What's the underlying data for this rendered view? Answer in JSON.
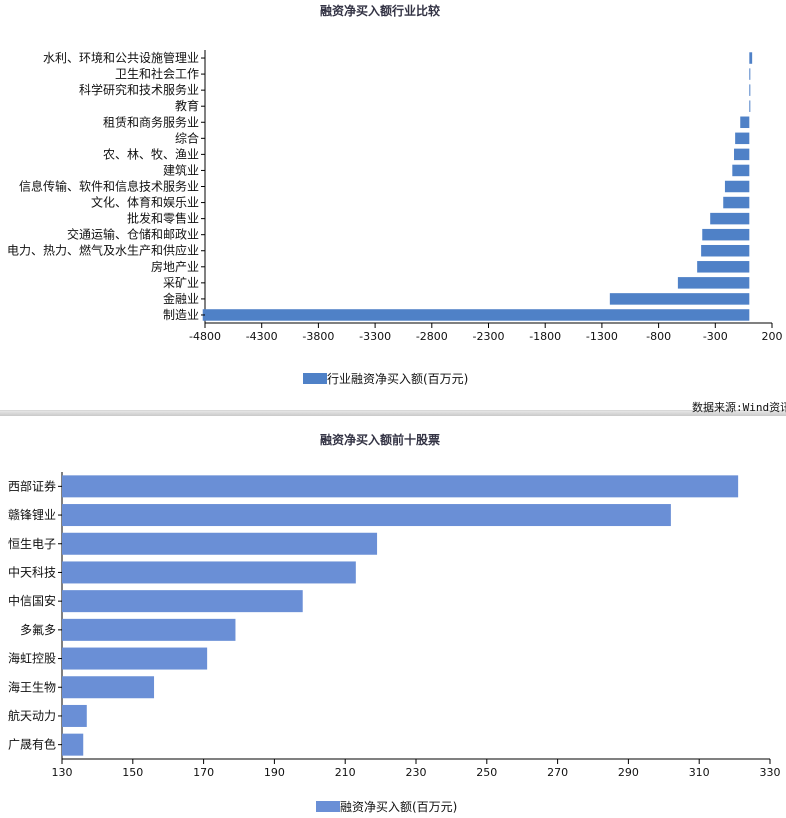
{
  "source": "数据来源:Wind资讯",
  "chart_data": [
    {
      "type": "bar",
      "orientation": "horizontal",
      "title": "融资净买入额行业比较",
      "legend_label": "行业融资净买入额(百万元)",
      "legend_position": "bottom",
      "categories": [
        "水利、环境和公共设施管理业",
        "卫生和社会工作",
        "科学研究和技术服务业",
        "教育",
        "租赁和商务服务业",
        "综合",
        "农、林、牧、渔业",
        "建筑业",
        "信息传输、软件和信息技术服务业",
        "文化、体育和娱乐业",
        "批发和零售业",
        "交通运输、仓储和邮政业",
        "电力、热力、燃气及水生产和供应业",
        "房地产业",
        "采矿业",
        "金融业",
        "制造业"
      ],
      "values": [
        25,
        5,
        3,
        2,
        -80,
        -125,
        -135,
        -150,
        -215,
        -230,
        -345,
        -415,
        -425,
        -460,
        -630,
        -1230,
        -4820
      ],
      "xlim": [
        -4800,
        200
      ],
      "xticks": [
        -4800,
        -4300,
        -3800,
        -3300,
        -2800,
        -2300,
        -1800,
        -1300,
        -800,
        -300,
        200
      ],
      "color": "#4f81c7",
      "grid": false
    },
    {
      "type": "bar",
      "orientation": "horizontal",
      "title": "融资净买入额前十股票",
      "legend_label": "融资净买入额(百万元)",
      "legend_position": "bottom",
      "categories": [
        "西部证券",
        "赣锋锂业",
        "恒生电子",
        "中天科技",
        "中信国安",
        "多氟多",
        "海虹控股",
        "海王生物",
        "航天动力",
        "广晟有色"
      ],
      "values": [
        321,
        302,
        219,
        213,
        198,
        179,
        171,
        156,
        137,
        136
      ],
      "xlim": [
        130,
        330
      ],
      "xticks": [
        130,
        150,
        170,
        190,
        210,
        230,
        250,
        270,
        290,
        310,
        330
      ],
      "color": "#6a8fd6",
      "grid": false
    }
  ]
}
